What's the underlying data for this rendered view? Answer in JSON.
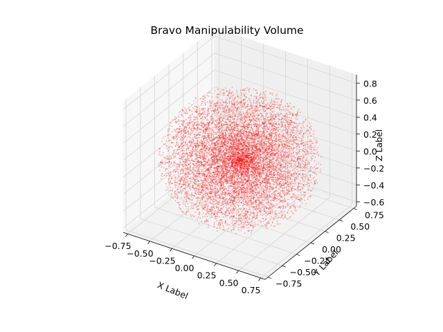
{
  "chart_data": {
    "type": "scatter",
    "projection": "3d",
    "title": "Bravo Manipulability Volume",
    "xlabel": "X Label",
    "ylabel": "Y Label",
    "zlabel": "Z Label",
    "xlim": [
      -0.8,
      0.8
    ],
    "ylim": [
      -0.8,
      0.8
    ],
    "zlim": [
      -0.65,
      0.9
    ],
    "x_ticks": [
      "−0.75",
      "−0.50",
      "−0.25",
      "0.00",
      "0.25",
      "0.50",
      "0.75"
    ],
    "y_ticks": [
      "−0.75",
      "−0.50",
      "−0.25",
      "0.00",
      "0.25",
      "0.50",
      "0.75"
    ],
    "z_ticks": [
      "−0.6",
      "−0.4",
      "−0.2",
      "0.0",
      "0.2",
      "0.4",
      "0.6",
      "0.8"
    ],
    "x_tick_values": [
      -0.75,
      -0.5,
      -0.25,
      0.0,
      0.25,
      0.5,
      0.75
    ],
    "y_tick_values": [
      -0.75,
      -0.5,
      -0.25,
      0.0,
      0.25,
      0.5,
      0.75
    ],
    "z_tick_values": [
      -0.6,
      -0.4,
      -0.2,
      0.0,
      0.2,
      0.4,
      0.6,
      0.8
    ],
    "grid": true,
    "series": [
      {
        "marker_color": "#ff0000",
        "marker_alpha": 0.35,
        "distribution": "dense sphere of points centered near origin",
        "center": [
          0.0,
          0.0,
          0.05
        ],
        "radius": 0.78,
        "n_points": 9000
      }
    ]
  }
}
